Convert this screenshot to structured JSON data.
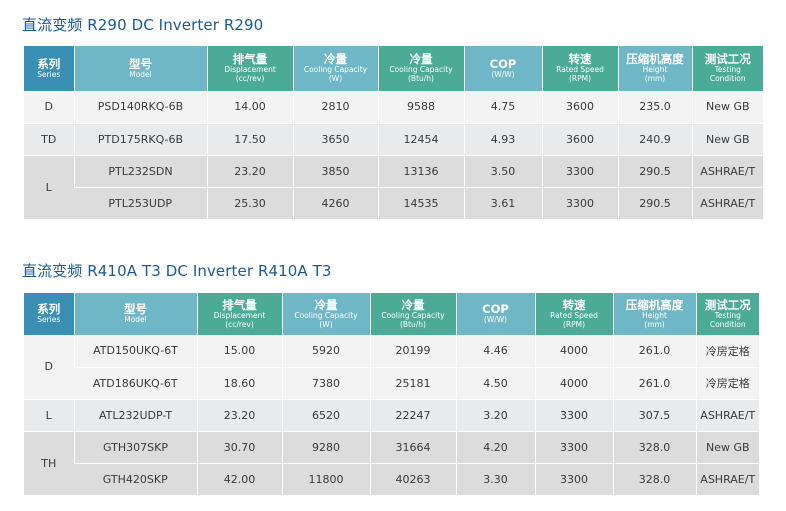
{
  "headers": [
    {
      "cn": "系列",
      "en": "Series"
    },
    {
      "cn": "型号",
      "en": "Model"
    },
    {
      "cn": "排气量",
      "en": "Displacement",
      "en2": "(cc/rev)"
    },
    {
      "cn": "冷量",
      "en": "Cooling Capacity",
      "en2": "(W)"
    },
    {
      "cn": "冷量",
      "en": "Cooling Capacity",
      "en2": "(Btu/h)"
    },
    {
      "cn": "COP",
      "en": "(W/W)"
    },
    {
      "cn": "转速",
      "en": "Rated Speed",
      "en2": "(RPM)"
    },
    {
      "cn": "压缩机高度",
      "en": "Height",
      "en2": "(mm)"
    },
    {
      "cn": "测试工况",
      "en": "Testing",
      "en2": "Condition"
    }
  ],
  "section1": {
    "title": "直流变频 R290 DC Inverter R290",
    "rows": [
      {
        "series": "D",
        "model": "PSD140RKQ-6B",
        "displacement": "14.00",
        "cooling_w": "2810",
        "cooling_btu": "9588",
        "cop": "4.75",
        "speed": "3600",
        "height": "235.0",
        "condition": "New GB"
      },
      {
        "series": "TD",
        "model": "PTD175RKQ-6B",
        "displacement": "17.50",
        "cooling_w": "3650",
        "cooling_btu": "12454",
        "cop": "4.93",
        "speed": "3600",
        "height": "240.9",
        "condition": "New GB"
      },
      {
        "series": "L",
        "model": "PTL232SDN",
        "displacement": "23.20",
        "cooling_w": "3850",
        "cooling_btu": "13136",
        "cop": "3.50",
        "speed": "3300",
        "height": "290.5",
        "condition": "ASHRAE/T"
      },
      {
        "series": "",
        "model": "PTL253UDP",
        "displacement": "25.30",
        "cooling_w": "4260",
        "cooling_btu": "14535",
        "cop": "3.61",
        "speed": "3300",
        "height": "290.5",
        "condition": "ASHRAE/T"
      }
    ]
  },
  "section2": {
    "title": "直流变频 R410A T3 DC Inverter R410A T3",
    "rows": [
      {
        "series": "D",
        "model": "ATD150UKQ-6T",
        "displacement": "15.00",
        "cooling_w": "5920",
        "cooling_btu": "20199",
        "cop": "4.46",
        "speed": "4000",
        "height": "261.0",
        "condition": "冷房定格"
      },
      {
        "series": "",
        "model": "ATD186UKQ-6T",
        "displacement": "18.60",
        "cooling_w": "7380",
        "cooling_btu": "25181",
        "cop": "4.50",
        "speed": "4000",
        "height": "261.0",
        "condition": "冷房定格"
      },
      {
        "series": "L",
        "model": "ATL232UDP-T",
        "displacement": "23.20",
        "cooling_w": "6520",
        "cooling_btu": "22247",
        "cop": "3.20",
        "speed": "3300",
        "height": "307.5",
        "condition": "ASHRAE/T"
      },
      {
        "series": "TH",
        "model": "GTH307SKP",
        "displacement": "30.70",
        "cooling_w": "9280",
        "cooling_btu": "31664",
        "cop": "4.20",
        "speed": "3300",
        "height": "328.0",
        "condition": "New GB"
      },
      {
        "series": "",
        "model": "GTH420SKP",
        "displacement": "42.00",
        "cooling_w": "11800",
        "cooling_btu": "40263",
        "cop": "3.30",
        "speed": "3300",
        "height": "328.0",
        "condition": "ASHRAE/T"
      }
    ]
  }
}
